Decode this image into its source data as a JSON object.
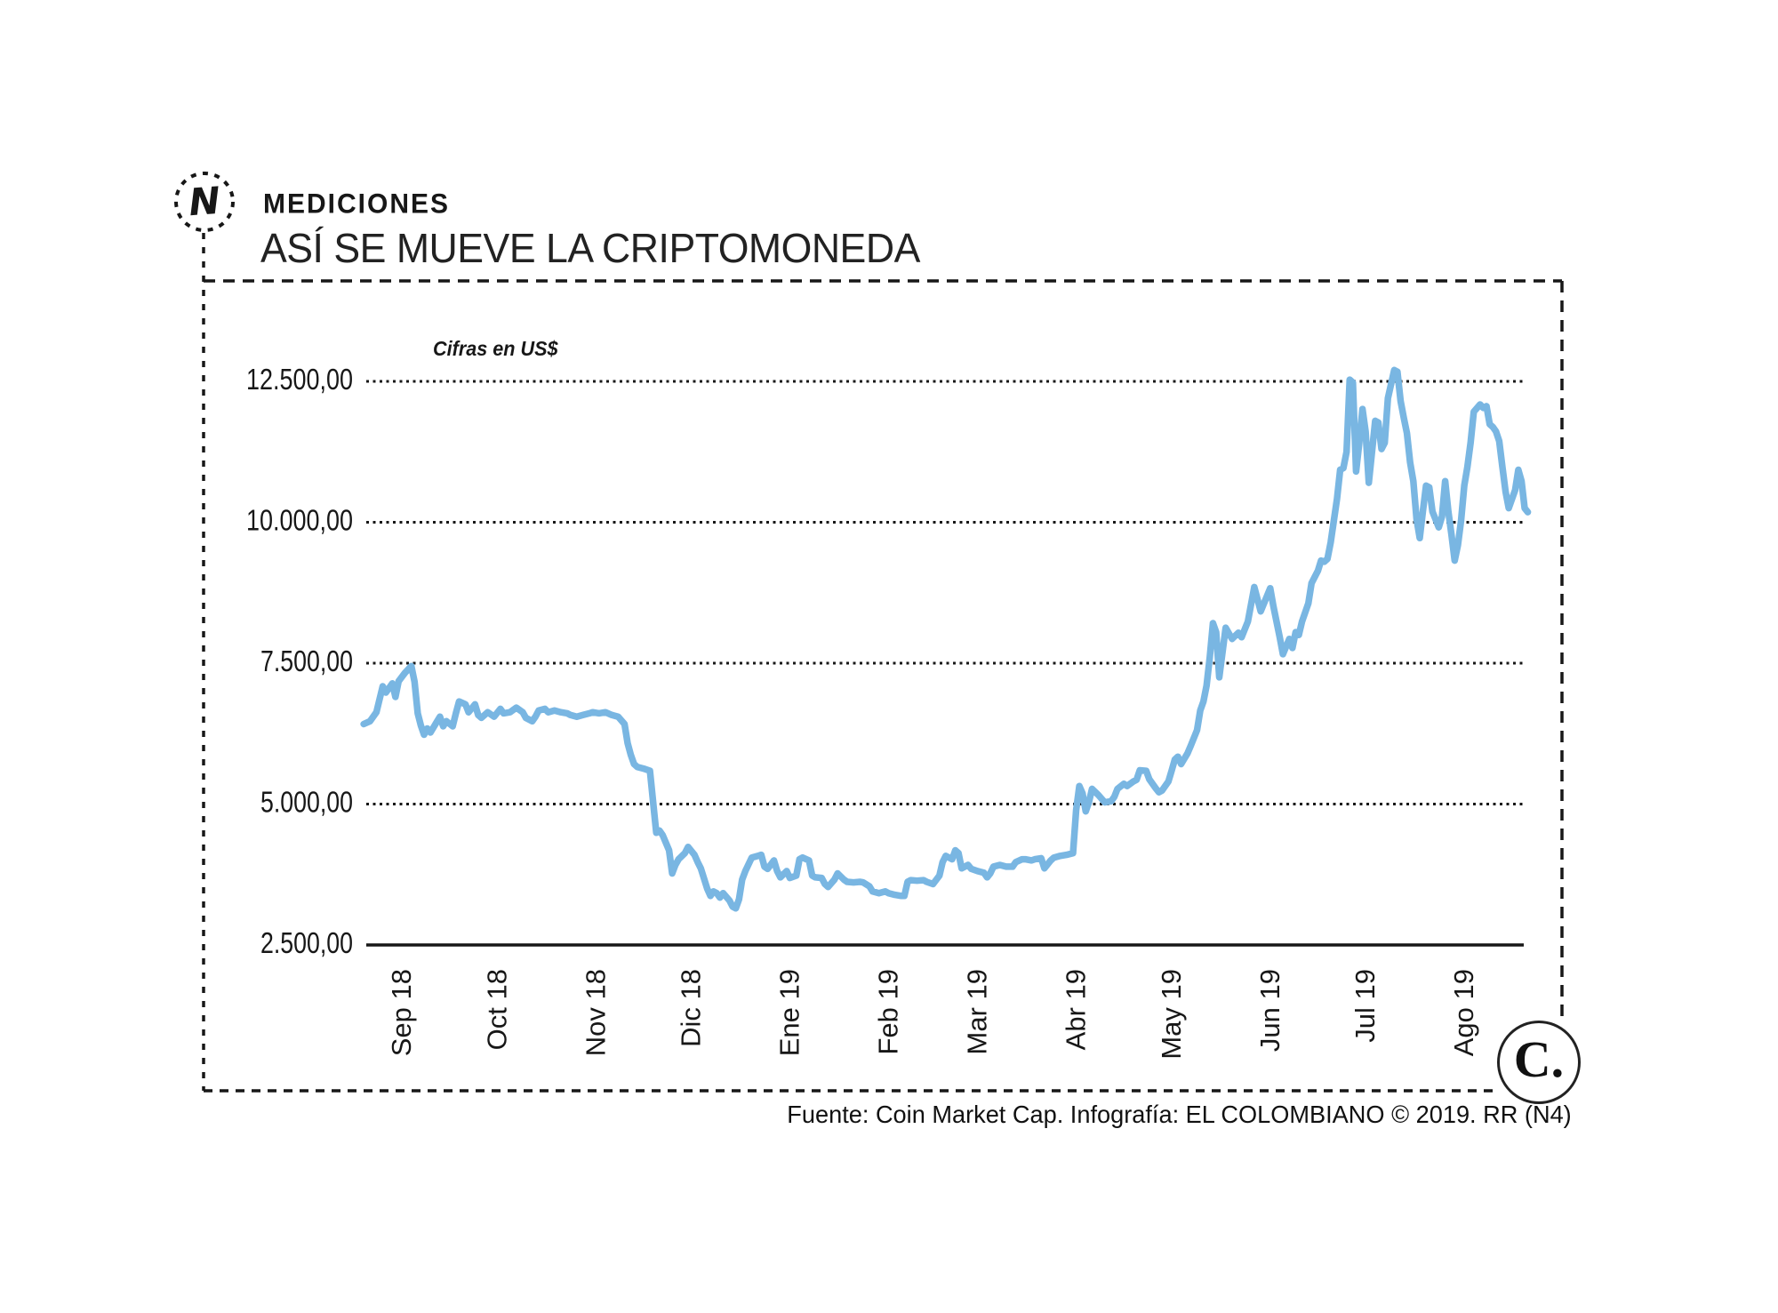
{
  "brand": {
    "logo_letter": "N",
    "newspaper_logo": "C."
  },
  "header": {
    "kicker": "MEDICIONES",
    "title": "ASÍ SE MUEVE LA CRIPTOMONEDA"
  },
  "footer": {
    "credit": "Fuente: Coin Market Cap. Infografía: EL COLOMBIANO © 2019. RR (N4)"
  },
  "chart_data": {
    "type": "line",
    "title": "ASÍ SE MUEVE LA CRIPTOMONEDA",
    "units_note": "Cifras en US$",
    "line_color": "#79B6E2",
    "grid": "dotted horizontal gridlines, solid bottom axis",
    "legend": "none",
    "y_min": 2500,
    "y_max": 12500,
    "y_ticks": [
      {
        "value": 12500,
        "label": "12.500,00"
      },
      {
        "value": 10000,
        "label": "10.000,00"
      },
      {
        "value": 7500,
        "label": "7.500,00"
      },
      {
        "value": 5000,
        "label": "5.000,00"
      },
      {
        "value": 2500,
        "label": "2.500,00"
      }
    ],
    "x_ticks": [
      {
        "date": "2018-09-01",
        "label": "Sep 18"
      },
      {
        "date": "2018-10-01",
        "label": "Oct 18"
      },
      {
        "date": "2018-11-01",
        "label": "Nov 18"
      },
      {
        "date": "2018-12-01",
        "label": "Dic 18"
      },
      {
        "date": "2019-01-01",
        "label": "Ene 19"
      },
      {
        "date": "2019-02-01",
        "label": "Feb 19"
      },
      {
        "date": "2019-03-01",
        "label": "Mar 19"
      },
      {
        "date": "2019-04-01",
        "label": "Abr 19"
      },
      {
        "date": "2019-05-01",
        "label": "May 19"
      },
      {
        "date": "2019-06-01",
        "label": "Jun 19"
      },
      {
        "date": "2019-07-01",
        "label": "Jul 19"
      },
      {
        "date": "2019-08-01",
        "label": "Ago 19"
      }
    ],
    "points": [
      [
        "2018-08-20",
        6420
      ],
      [
        "2018-08-22",
        6470
      ],
      [
        "2018-08-24",
        6630
      ],
      [
        "2018-08-26",
        7090
      ],
      [
        "2018-08-27",
        6980
      ],
      [
        "2018-08-29",
        7140
      ],
      [
        "2018-08-30",
        6900
      ],
      [
        "2018-08-31",
        7180
      ],
      [
        "2018-09-02",
        7330
      ],
      [
        "2018-09-04",
        7450
      ],
      [
        "2018-09-05",
        7170
      ],
      [
        "2018-09-06",
        6610
      ],
      [
        "2018-09-07",
        6390
      ],
      [
        "2018-09-08",
        6230
      ],
      [
        "2018-09-09",
        6340
      ],
      [
        "2018-09-10",
        6270
      ],
      [
        "2018-09-12",
        6460
      ],
      [
        "2018-09-13",
        6550
      ],
      [
        "2018-09-14",
        6380
      ],
      [
        "2018-09-15",
        6470
      ],
      [
        "2018-09-17",
        6380
      ],
      [
        "2018-09-18",
        6610
      ],
      [
        "2018-09-19",
        6820
      ],
      [
        "2018-09-21",
        6770
      ],
      [
        "2018-09-22",
        6630
      ],
      [
        "2018-09-24",
        6770
      ],
      [
        "2018-09-25",
        6580
      ],
      [
        "2018-09-26",
        6530
      ],
      [
        "2018-09-28",
        6630
      ],
      [
        "2018-09-30",
        6550
      ],
      [
        "2018-10-02",
        6690
      ],
      [
        "2018-10-03",
        6610
      ],
      [
        "2018-10-05",
        6630
      ],
      [
        "2018-10-07",
        6710
      ],
      [
        "2018-10-09",
        6630
      ],
      [
        "2018-10-10",
        6530
      ],
      [
        "2018-10-12",
        6470
      ],
      [
        "2018-10-13",
        6550
      ],
      [
        "2018-10-14",
        6660
      ],
      [
        "2018-10-16",
        6690
      ],
      [
        "2018-10-17",
        6630
      ],
      [
        "2018-10-19",
        6660
      ],
      [
        "2018-10-21",
        6630
      ],
      [
        "2018-10-23",
        6610
      ],
      [
        "2018-10-24",
        6580
      ],
      [
        "2018-10-26",
        6550
      ],
      [
        "2018-10-28",
        6580
      ],
      [
        "2018-10-30",
        6610
      ],
      [
        "2018-10-31",
        6630
      ],
      [
        "2018-11-02",
        6610
      ],
      [
        "2018-11-04",
        6630
      ],
      [
        "2018-11-06",
        6580
      ],
      [
        "2018-11-08",
        6550
      ],
      [
        "2018-11-10",
        6420
      ],
      [
        "2018-11-11",
        6080
      ],
      [
        "2018-11-12",
        5870
      ],
      [
        "2018-11-13",
        5710
      ],
      [
        "2018-11-14",
        5660
      ],
      [
        "2018-11-16",
        5630
      ],
      [
        "2018-11-18",
        5590
      ],
      [
        "2018-11-19",
        5030
      ],
      [
        "2018-11-20",
        4490
      ],
      [
        "2018-11-21",
        4530
      ],
      [
        "2018-11-22",
        4450
      ],
      [
        "2018-11-24",
        4180
      ],
      [
        "2018-11-25",
        3770
      ],
      [
        "2018-11-26",
        3920
      ],
      [
        "2018-11-27",
        4020
      ],
      [
        "2018-11-29",
        4130
      ],
      [
        "2018-11-30",
        4240
      ],
      [
        "2018-12-02",
        4100
      ],
      [
        "2018-12-03",
        3970
      ],
      [
        "2018-12-04",
        3860
      ],
      [
        "2018-12-06",
        3500
      ],
      [
        "2018-12-07",
        3370
      ],
      [
        "2018-12-08",
        3450
      ],
      [
        "2018-12-09",
        3420
      ],
      [
        "2018-12-10",
        3340
      ],
      [
        "2018-12-11",
        3420
      ],
      [
        "2018-12-13",
        3290
      ],
      [
        "2018-12-14",
        3180
      ],
      [
        "2018-12-15",
        3150
      ],
      [
        "2018-12-16",
        3310
      ],
      [
        "2018-12-17",
        3660
      ],
      [
        "2018-12-18",
        3810
      ],
      [
        "2018-12-20",
        4050
      ],
      [
        "2018-12-22",
        4080
      ],
      [
        "2018-12-23",
        4100
      ],
      [
        "2018-12-24",
        3890
      ],
      [
        "2018-12-25",
        3850
      ],
      [
        "2018-12-27",
        4000
      ],
      [
        "2018-12-28",
        3810
      ],
      [
        "2018-12-29",
        3700
      ],
      [
        "2018-12-31",
        3810
      ],
      [
        "2019-01-01",
        3690
      ],
      [
        "2019-01-03",
        3730
      ],
      [
        "2019-01-04",
        4020
      ],
      [
        "2019-01-05",
        4050
      ],
      [
        "2019-01-07",
        4000
      ],
      [
        "2019-01-08",
        3730
      ],
      [
        "2019-01-09",
        3700
      ],
      [
        "2019-01-11",
        3690
      ],
      [
        "2019-01-12",
        3580
      ],
      [
        "2019-01-13",
        3530
      ],
      [
        "2019-01-15",
        3660
      ],
      [
        "2019-01-16",
        3770
      ],
      [
        "2019-01-18",
        3660
      ],
      [
        "2019-01-19",
        3620
      ],
      [
        "2019-01-21",
        3610
      ],
      [
        "2019-01-23",
        3620
      ],
      [
        "2019-01-24",
        3610
      ],
      [
        "2019-01-26",
        3540
      ],
      [
        "2019-01-27",
        3450
      ],
      [
        "2019-01-29",
        3420
      ],
      [
        "2019-01-31",
        3450
      ],
      [
        "2019-02-01",
        3420
      ],
      [
        "2019-02-03",
        3390
      ],
      [
        "2019-02-05",
        3370
      ],
      [
        "2019-02-06",
        3370
      ],
      [
        "2019-02-07",
        3620
      ],
      [
        "2019-02-08",
        3650
      ],
      [
        "2019-02-10",
        3640
      ],
      [
        "2019-02-12",
        3650
      ],
      [
        "2019-02-13",
        3620
      ],
      [
        "2019-02-15",
        3580
      ],
      [
        "2019-02-17",
        3730
      ],
      [
        "2019-02-18",
        3970
      ],
      [
        "2019-02-19",
        4080
      ],
      [
        "2019-02-21",
        4020
      ],
      [
        "2019-02-22",
        4180
      ],
      [
        "2019-02-23",
        4130
      ],
      [
        "2019-02-24",
        3860
      ],
      [
        "2019-02-26",
        3920
      ],
      [
        "2019-02-27",
        3850
      ],
      [
        "2019-03-01",
        3810
      ],
      [
        "2019-03-03",
        3780
      ],
      [
        "2019-03-04",
        3700
      ],
      [
        "2019-03-05",
        3770
      ],
      [
        "2019-03-06",
        3890
      ],
      [
        "2019-03-08",
        3920
      ],
      [
        "2019-03-10",
        3890
      ],
      [
        "2019-03-12",
        3890
      ],
      [
        "2019-03-13",
        3970
      ],
      [
        "2019-03-15",
        4020
      ],
      [
        "2019-03-16",
        4020
      ],
      [
        "2019-03-18",
        4000
      ],
      [
        "2019-03-19",
        4020
      ],
      [
        "2019-03-21",
        4040
      ],
      [
        "2019-03-22",
        3860
      ],
      [
        "2019-03-24",
        4000
      ],
      [
        "2019-03-25",
        4050
      ],
      [
        "2019-03-27",
        4080
      ],
      [
        "2019-03-29",
        4100
      ],
      [
        "2019-03-31",
        4130
      ],
      [
        "2019-04-01",
        4890
      ],
      [
        "2019-04-02",
        5320
      ],
      [
        "2019-04-03",
        5190
      ],
      [
        "2019-04-04",
        4870
      ],
      [
        "2019-04-05",
        5030
      ],
      [
        "2019-04-06",
        5270
      ],
      [
        "2019-04-08",
        5160
      ],
      [
        "2019-04-10",
        5030
      ],
      [
        "2019-04-12",
        5050
      ],
      [
        "2019-04-13",
        5130
      ],
      [
        "2019-04-14",
        5270
      ],
      [
        "2019-04-16",
        5360
      ],
      [
        "2019-04-17",
        5320
      ],
      [
        "2019-04-19",
        5400
      ],
      [
        "2019-04-20",
        5430
      ],
      [
        "2019-04-21",
        5600
      ],
      [
        "2019-04-23",
        5590
      ],
      [
        "2019-04-24",
        5440
      ],
      [
        "2019-04-26",
        5280
      ],
      [
        "2019-04-27",
        5210
      ],
      [
        "2019-04-28",
        5240
      ],
      [
        "2019-04-30",
        5400
      ],
      [
        "2019-05-01",
        5590
      ],
      [
        "2019-05-02",
        5790
      ],
      [
        "2019-05-03",
        5840
      ],
      [
        "2019-05-04",
        5710
      ],
      [
        "2019-05-06",
        5900
      ],
      [
        "2019-05-07",
        6030
      ],
      [
        "2019-05-09",
        6310
      ],
      [
        "2019-05-10",
        6660
      ],
      [
        "2019-05-11",
        6820
      ],
      [
        "2019-05-12",
        7100
      ],
      [
        "2019-05-13",
        7600
      ],
      [
        "2019-05-14",
        8210
      ],
      [
        "2019-05-15",
        8050
      ],
      [
        "2019-05-16",
        7250
      ],
      [
        "2019-05-18",
        8130
      ],
      [
        "2019-05-20",
        7930
      ],
      [
        "2019-05-22",
        8040
      ],
      [
        "2019-05-23",
        7960
      ],
      [
        "2019-05-25",
        8240
      ],
      [
        "2019-05-27",
        8850
      ],
      [
        "2019-05-29",
        8420
      ],
      [
        "2019-06-01",
        8830
      ],
      [
        "2019-06-02",
        8510
      ],
      [
        "2019-06-03",
        8240
      ],
      [
        "2019-06-04",
        7960
      ],
      [
        "2019-06-05",
        7660
      ],
      [
        "2019-06-07",
        7930
      ],
      [
        "2019-06-08",
        7770
      ],
      [
        "2019-06-09",
        8050
      ],
      [
        "2019-06-10",
        8000
      ],
      [
        "2019-06-11",
        8240
      ],
      [
        "2019-06-13",
        8560
      ],
      [
        "2019-06-14",
        8920
      ],
      [
        "2019-06-16",
        9140
      ],
      [
        "2019-06-17",
        9320
      ],
      [
        "2019-06-18",
        9300
      ],
      [
        "2019-06-19",
        9350
      ],
      [
        "2019-06-20",
        9640
      ],
      [
        "2019-06-21",
        10030
      ],
      [
        "2019-06-22",
        10410
      ],
      [
        "2019-06-23",
        10930
      ],
      [
        "2019-06-24",
        10960
      ],
      [
        "2019-06-25",
        11250
      ],
      [
        "2019-06-26",
        12530
      ],
      [
        "2019-06-27",
        12480
      ],
      [
        "2019-06-28",
        10900
      ],
      [
        "2019-06-29",
        11410
      ],
      [
        "2019-06-30",
        12010
      ],
      [
        "2019-07-01",
        11610
      ],
      [
        "2019-07-02",
        10700
      ],
      [
        "2019-07-03",
        11250
      ],
      [
        "2019-07-04",
        11800
      ],
      [
        "2019-07-05",
        11770
      ],
      [
        "2019-07-06",
        11300
      ],
      [
        "2019-07-07",
        11410
      ],
      [
        "2019-07-08",
        12200
      ],
      [
        "2019-07-10",
        12700
      ],
      [
        "2019-07-11",
        12670
      ],
      [
        "2019-07-12",
        12150
      ],
      [
        "2019-07-13",
        11850
      ],
      [
        "2019-07-14",
        11580
      ],
      [
        "2019-07-15",
        11060
      ],
      [
        "2019-07-16",
        10730
      ],
      [
        "2019-07-17",
        10060
      ],
      [
        "2019-07-18",
        9720
      ],
      [
        "2019-07-19",
        10190
      ],
      [
        "2019-07-20",
        10650
      ],
      [
        "2019-07-21",
        10620
      ],
      [
        "2019-07-22",
        10190
      ],
      [
        "2019-07-24",
        9910
      ],
      [
        "2019-07-25",
        10100
      ],
      [
        "2019-07-26",
        10730
      ],
      [
        "2019-07-27",
        10190
      ],
      [
        "2019-07-28",
        9780
      ],
      [
        "2019-07-29",
        9320
      ],
      [
        "2019-07-30",
        9590
      ],
      [
        "2019-07-31",
        10030
      ],
      [
        "2019-08-01",
        10650
      ],
      [
        "2019-08-02",
        10980
      ],
      [
        "2019-08-03",
        11410
      ],
      [
        "2019-08-04",
        11960
      ],
      [
        "2019-08-06",
        12090
      ],
      [
        "2019-08-07",
        12030
      ],
      [
        "2019-08-08",
        12060
      ],
      [
        "2019-08-09",
        11740
      ],
      [
        "2019-08-10",
        11690
      ],
      [
        "2019-08-11",
        11610
      ],
      [
        "2019-08-12",
        11440
      ],
      [
        "2019-08-13",
        10980
      ],
      [
        "2019-08-14",
        10540
      ],
      [
        "2019-08-15",
        10250
      ],
      [
        "2019-08-16",
        10410
      ],
      [
        "2019-08-17",
        10570
      ],
      [
        "2019-08-18",
        10930
      ],
      [
        "2019-08-19",
        10730
      ],
      [
        "2019-08-20",
        10250
      ],
      [
        "2019-08-21",
        10180
      ]
    ]
  }
}
